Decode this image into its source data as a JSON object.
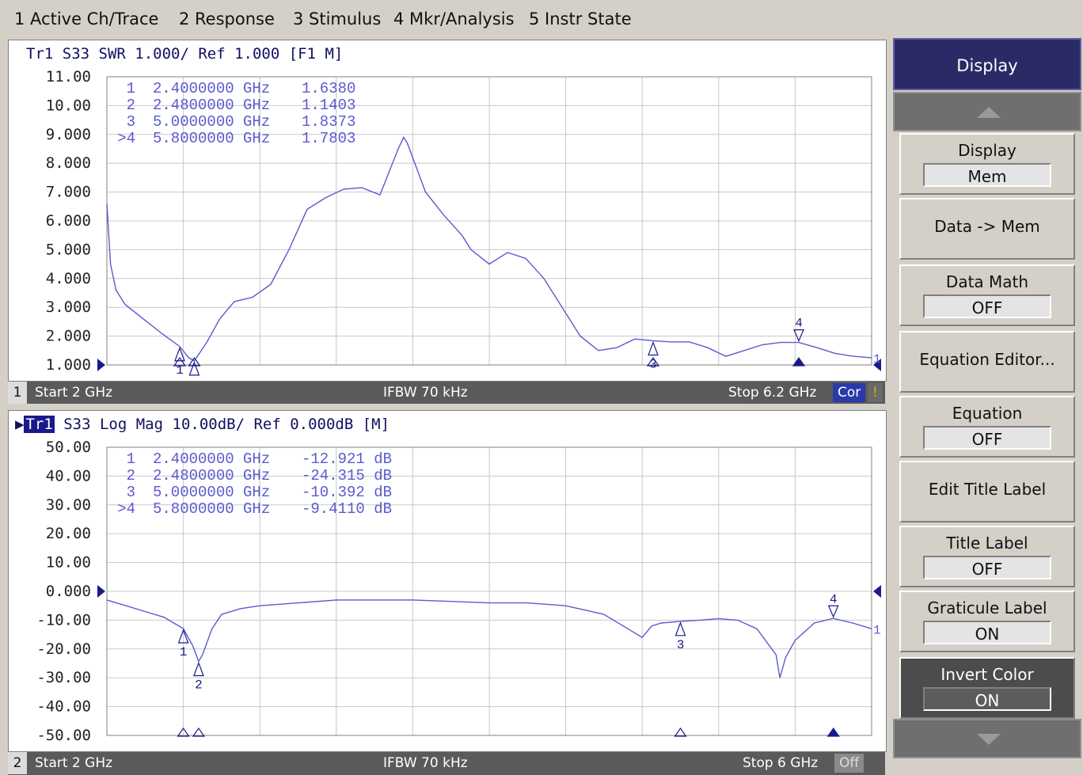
{
  "menu": [
    "1 Active Ch/Trace",
    "2 Response",
    "3 Stimulus",
    "4 Mkr/Analysis",
    "5 Instr State"
  ],
  "channels": [
    {
      "title": "Tr1 S33 SWR 1.000/ Ref 1.000 [F1 M]",
      "title_tr": "",
      "y_labels": [
        "11.00",
        "10.00",
        "9.000",
        "8.000",
        "7.000",
        "6.000",
        "5.000",
        "4.000",
        "3.000",
        "2.000",
        "1.000"
      ],
      "ref_label": "1.000",
      "markers": [
        {
          "num": "1",
          "freq": "2.4000000 GHz",
          "value": "1.6380"
        },
        {
          "num": "2",
          "freq": "2.4800000 GHz",
          "value": "1.1403"
        },
        {
          "num": "3",
          "freq": "5.0000000 GHz",
          "value": "1.8373"
        },
        {
          "num": ">4",
          "freq": "5.8000000 GHz",
          "value": "1.7803"
        }
      ],
      "status": {
        "num": "1",
        "start": "Start 2 GHz",
        "ifbw": "IFBW 70 kHz",
        "stop": "Stop 6.2 GHz",
        "cor": "Cor",
        "bang": "!"
      }
    },
    {
      "title": "S33 Log Mag 10.00dB/ Ref 0.000dB [M]",
      "title_tr": "Tr1",
      "y_labels": [
        "50.00",
        "40.00",
        "30.00",
        "20.00",
        "10.00",
        "0.000",
        "-10.00",
        "-20.00",
        "-30.00",
        "-40.00",
        "-50.00"
      ],
      "ref_label": "0.000",
      "markers": [
        {
          "num": "1",
          "freq": "2.4000000 GHz",
          "value": "-12.921 dB"
        },
        {
          "num": "2",
          "freq": "2.4800000 GHz",
          "value": "-24.315 dB"
        },
        {
          "num": "3",
          "freq": "5.0000000 GHz",
          "value": "-10.392 dB"
        },
        {
          "num": ">4",
          "freq": "5.8000000 GHz",
          "value": "-9.4110 dB"
        }
      ],
      "status": {
        "num": "2",
        "start": "Start 2 GHz",
        "ifbw": "IFBW 70 kHz",
        "stop": "Stop 6 GHz",
        "off": "Off"
      }
    }
  ],
  "softkeys": {
    "header": "Display",
    "buttons": [
      {
        "label": "Display",
        "value": "Mem"
      },
      {
        "label": "Data -> Mem"
      },
      {
        "label": "Data Math",
        "value": "OFF"
      },
      {
        "label": "Equation Editor..."
      },
      {
        "label": "Equation",
        "value": "OFF"
      },
      {
        "label": "Edit Title Label"
      },
      {
        "label": "Title Label",
        "value": "OFF"
      },
      {
        "label": "Graticule Label",
        "value": "ON"
      },
      {
        "label": "Invert Color",
        "value": "ON"
      }
    ]
  },
  "trace_color": "#5a5ad0",
  "chart_data": [
    {
      "type": "line",
      "title": "Tr1 S33 SWR 1.000/ Ref 1.000 [F1 M]",
      "xlim": [
        2.0,
        6.2
      ],
      "ylim": [
        1.0,
        11.0
      ],
      "x": [
        2.0,
        2.02,
        2.05,
        2.1,
        2.2,
        2.3,
        2.4,
        2.45,
        2.48,
        2.55,
        2.62,
        2.7,
        2.8,
        2.9,
        3.0,
        3.1,
        3.2,
        3.3,
        3.4,
        3.5,
        3.6,
        3.63,
        3.65,
        3.75,
        3.85,
        3.95,
        4.0,
        4.1,
        4.2,
        4.3,
        4.4,
        4.5,
        4.6,
        4.7,
        4.8,
        4.9,
        5.0,
        5.1,
        5.2,
        5.3,
        5.4,
        5.5,
        5.6,
        5.7,
        5.8,
        5.9,
        6.0,
        6.1,
        6.2
      ],
      "y": [
        6.6,
        4.5,
        3.6,
        3.1,
        2.6,
        2.1,
        1.64,
        1.25,
        1.14,
        1.8,
        2.6,
        3.2,
        3.35,
        3.8,
        5.0,
        6.4,
        6.8,
        7.1,
        7.15,
        6.9,
        8.5,
        8.9,
        8.7,
        7.0,
        6.2,
        5.5,
        5.0,
        4.5,
        4.9,
        4.7,
        4.0,
        3.0,
        2.0,
        1.5,
        1.6,
        1.9,
        1.84,
        1.8,
        1.8,
        1.6,
        1.3,
        1.5,
        1.7,
        1.78,
        1.78,
        1.6,
        1.4,
        1.3,
        1.25
      ],
      "markers": [
        {
          "x": 2.4,
          "y": 1.638
        },
        {
          "x": 2.48,
          "y": 1.1403
        },
        {
          "x": 5.0,
          "y": 1.8373
        },
        {
          "x": 5.8,
          "y": 1.7803
        }
      ]
    },
    {
      "type": "line",
      "title": "S33 Log Mag 10.00dB/ Ref 0.000dB [M]",
      "xlim": [
        2.0,
        6.0
      ],
      "ylim": [
        -50,
        50
      ],
      "x": [
        2.0,
        2.1,
        2.2,
        2.3,
        2.35,
        2.4,
        2.45,
        2.48,
        2.5,
        2.55,
        2.6,
        2.7,
        2.8,
        3.0,
        3.2,
        3.4,
        3.6,
        3.8,
        4.0,
        4.2,
        4.4,
        4.6,
        4.7,
        4.8,
        4.85,
        4.9,
        5.0,
        5.1,
        5.2,
        5.3,
        5.4,
        5.5,
        5.52,
        5.55,
        5.6,
        5.7,
        5.8,
        5.9,
        6.0
      ],
      "y": [
        -3,
        -5,
        -7,
        -9,
        -11,
        -12.9,
        -19,
        -24.3,
        -22,
        -13,
        -8,
        -6,
        -5,
        -4,
        -3,
        -3,
        -3,
        -3.5,
        -4,
        -4,
        -5,
        -8,
        -12,
        -16,
        -12,
        -11,
        -10.4,
        -10,
        -9.5,
        -10,
        -13,
        -22,
        -30,
        -23,
        -17,
        -11,
        -9.4,
        -11,
        -13
      ]
    }
  ]
}
